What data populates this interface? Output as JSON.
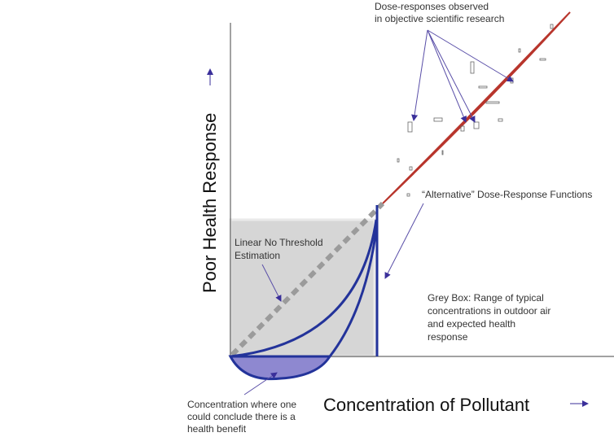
{
  "observed_label": {
    "lines": [
      "Dose-responses observed",
      "in objective scientific research"
    ]
  },
  "alternative_label": {
    "lines": [
      "“Alternative” Dose-Response Functions"
    ]
  },
  "lnt_label": {
    "lines": [
      "Linear No Threshold",
      "Estimation"
    ]
  },
  "grey_box_label": {
    "lines": [
      "Grey Box: Range of typical",
      "concentrations in outdoor air",
      "and expected health",
      "response"
    ]
  },
  "benefit_label": {
    "lines": [
      "Concentration where one",
      "could conclude there is a",
      "health benefit"
    ]
  },
  "y_axis_label": "Poor Health Response",
  "x_axis_label": "Concentration of Pollutant"
}
